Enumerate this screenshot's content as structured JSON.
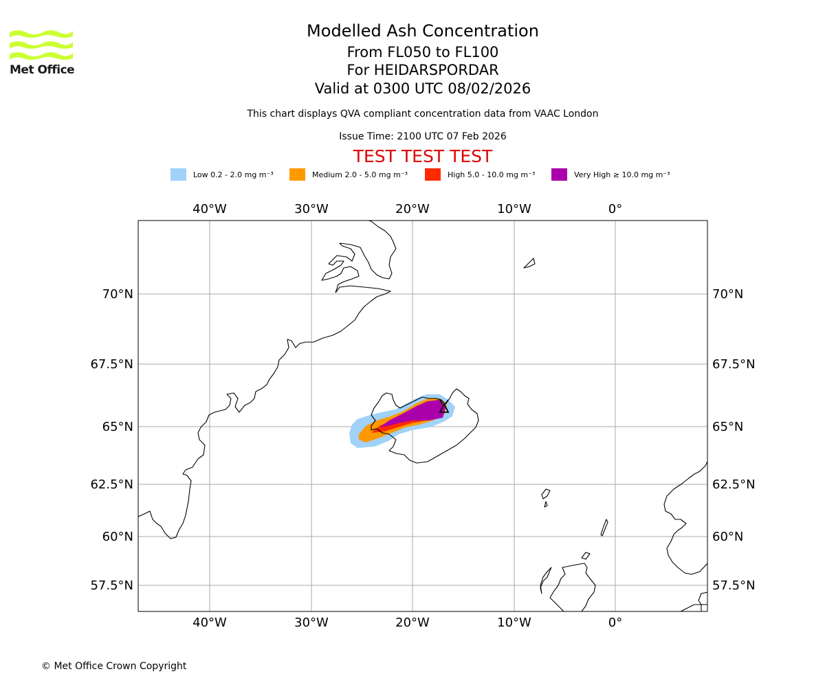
{
  "logo": {
    "text": "Met Office",
    "color": "#ccff33"
  },
  "header": {
    "title": "Modelled Ash Concentration",
    "levels": "From FL050 to FL100",
    "volcano": "For HEIDARSPORDAR",
    "valid": "Valid at 0300 UTC 08/02/2026",
    "description": "This chart displays QVA compliant concentration data from VAAC London",
    "issue_time": "Issue Time: 2100 UTC 07 Feb 2026",
    "test_banner": "TEST TEST TEST"
  },
  "legend": [
    {
      "label": "Low 0.2 - 2.0 mg m⁻³",
      "color": "#a0d2fa"
    },
    {
      "label": "Medium 2.0 - 5.0 mg m⁻³",
      "color": "#ff9900"
    },
    {
      "label": "High 5.0 - 10.0 mg m⁻³",
      "color": "#ff2a00"
    },
    {
      "label": "Very High ≥ 10.0 mg m⁻³",
      "color": "#aa00aa"
    }
  ],
  "map": {
    "lon_labels": [
      "40°W",
      "30°W",
      "20°W",
      "10°W",
      "0°"
    ],
    "lat_labels": [
      "70°N",
      "67.5°N",
      "65°N",
      "62.5°N",
      "60°N",
      "57.5°N"
    ],
    "grid": true
  },
  "footer": {
    "copyright": "© Met Office Crown Copyright"
  }
}
